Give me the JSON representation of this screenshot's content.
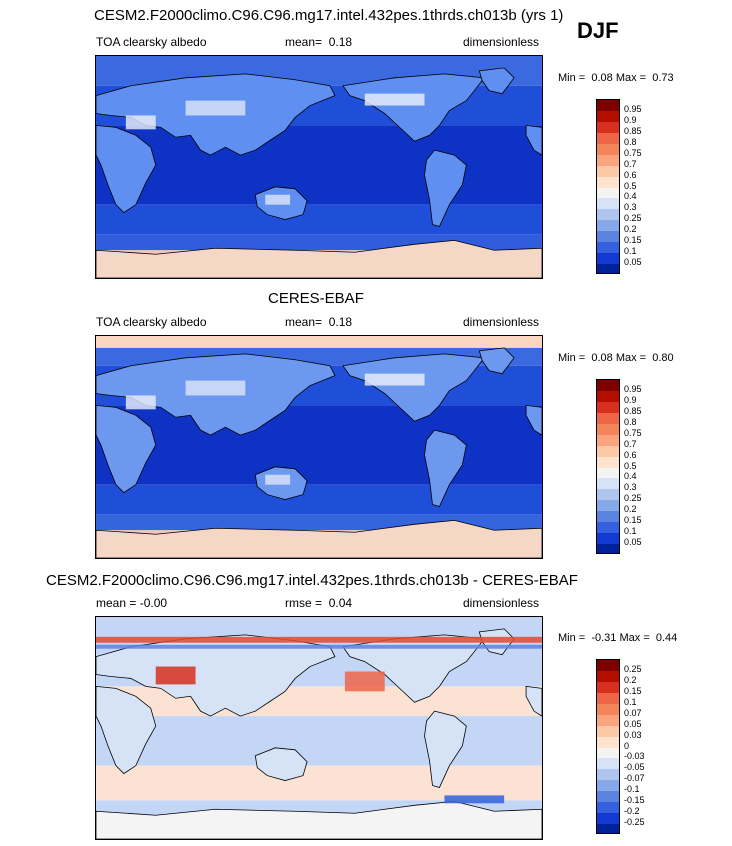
{
  "season": "DJF",
  "units": "dimensionless",
  "variable": "TOA clearsky albedo",
  "panels": [
    {
      "id": "model",
      "title": "CESM2.F2000climo.C96.C96.mg17.intel.432pes.1thrds.ch013b (yrs 1)",
      "left_text": "TOA clearsky albedo",
      "mean_label": "mean=",
      "mean_value": "0.18",
      "units": "dimensionless",
      "min_label": "Min =",
      "min_value": "0.08",
      "max_label": "Max =",
      "max_value": "0.73"
    },
    {
      "id": "obs",
      "title": "CERES-EBAF",
      "left_text": "TOA clearsky albedo",
      "mean_label": "mean=",
      "mean_value": "0.18",
      "units": "dimensionless",
      "min_label": "Min =",
      "min_value": "0.08",
      "max_label": "Max =",
      "max_value": "0.80"
    },
    {
      "id": "diff",
      "title": "CESM2.F2000climo.C96.C96.mg17.intel.432pes.1thrds.ch013b - CERES-EBAF",
      "left_text": "mean =  -0.00",
      "mean_label": "rmse =",
      "mean_value": "0.04",
      "units": "dimensionless",
      "min_label": "Min =",
      "min_value": "-0.31",
      "max_label": "Max =",
      "max_value": "0.44"
    }
  ],
  "colorbars": {
    "albedo": {
      "labels": [
        "0.95",
        "0.9",
        "0.85",
        "0.8",
        "0.75",
        "0.7",
        "0.6",
        "0.5",
        "0.4",
        "0.3",
        "0.25",
        "0.2",
        "0.15",
        "0.1",
        "0.05"
      ],
      "colors": [
        "#7f0000",
        "#b30f00",
        "#d7301f",
        "#ef6548",
        "#f4855a",
        "#fba57f",
        "#fcc9a8",
        "#fde3d0",
        "#f4f4f4",
        "#d6e3f7",
        "#aec6ef",
        "#86a8e8",
        "#5a84e0",
        "#3360dc",
        "#123ad1",
        "#001f99"
      ]
    },
    "diff": {
      "labels": [
        "0.25",
        "0.2",
        "0.15",
        "0.1",
        "0.07",
        "0.05",
        "0.03",
        "0",
        "-0.03",
        "-0.05",
        "-0.07",
        "-0.1",
        "-0.15",
        "-0.2",
        "-0.25"
      ],
      "colors": [
        "#7f0000",
        "#b30f00",
        "#d7301f",
        "#ef6548",
        "#f4855a",
        "#fba57f",
        "#fcc9a8",
        "#fde3d0",
        "#f4f4f4",
        "#d6e3f7",
        "#aec6ef",
        "#86a8e8",
        "#5a84e0",
        "#3360dc",
        "#123ad1",
        "#001f99"
      ]
    }
  }
}
